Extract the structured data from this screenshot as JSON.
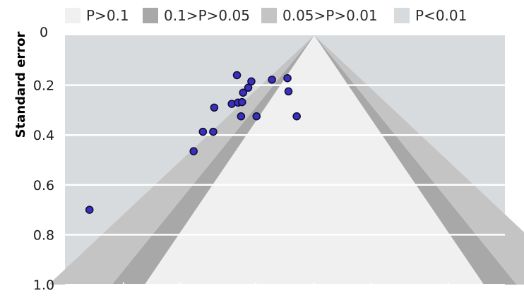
{
  "chart_data": {
    "type": "scatter",
    "ylabel": "Standard error",
    "xlabel": "",
    "y_axis_reversed": true,
    "ylim": [
      0,
      1.0
    ],
    "y_ticks": [
      "0",
      "0.2",
      "0.4",
      "0.6",
      "0.8",
      "1.0"
    ],
    "x_ticks_labeled": false,
    "legend": {
      "placement": "top",
      "entries": [
        {
          "label": "P>0.1",
          "color": "#f0f0f0"
        },
        {
          "label": "0.1>P>0.05",
          "color": "#a8a8a8"
        },
        {
          "label": "0.05>P>0.01",
          "color": "#c4c4c4"
        },
        {
          "label": "P<0.01",
          "color": "#d7dbde"
        }
      ]
    },
    "background_color": "#d7dbde",
    "grid": true,
    "point_color": "#3a2fc0",
    "points": [
      {
        "x": -2.18,
        "y": 0.7
      },
      {
        "x": -1.17,
        "y": 0.465
      },
      {
        "x": -1.08,
        "y": 0.387
      },
      {
        "x": -0.98,
        "y": 0.387
      },
      {
        "x": -0.97,
        "y": 0.29
      },
      {
        "x": -0.8,
        "y": 0.275
      },
      {
        "x": -0.75,
        "y": 0.16
      },
      {
        "x": -0.74,
        "y": 0.27
      },
      {
        "x": -0.7,
        "y": 0.268
      },
      {
        "x": -0.71,
        "y": 0.325
      },
      {
        "x": -0.69,
        "y": 0.23
      },
      {
        "x": -0.64,
        "y": 0.21
      },
      {
        "x": -0.61,
        "y": 0.185
      },
      {
        "x": -0.56,
        "y": 0.325
      },
      {
        "x": -0.41,
        "y": 0.178
      },
      {
        "x": -0.26,
        "y": 0.172
      },
      {
        "x": -0.25,
        "y": 0.225
      },
      {
        "x": -0.17,
        "y": 0.325
      }
    ]
  }
}
